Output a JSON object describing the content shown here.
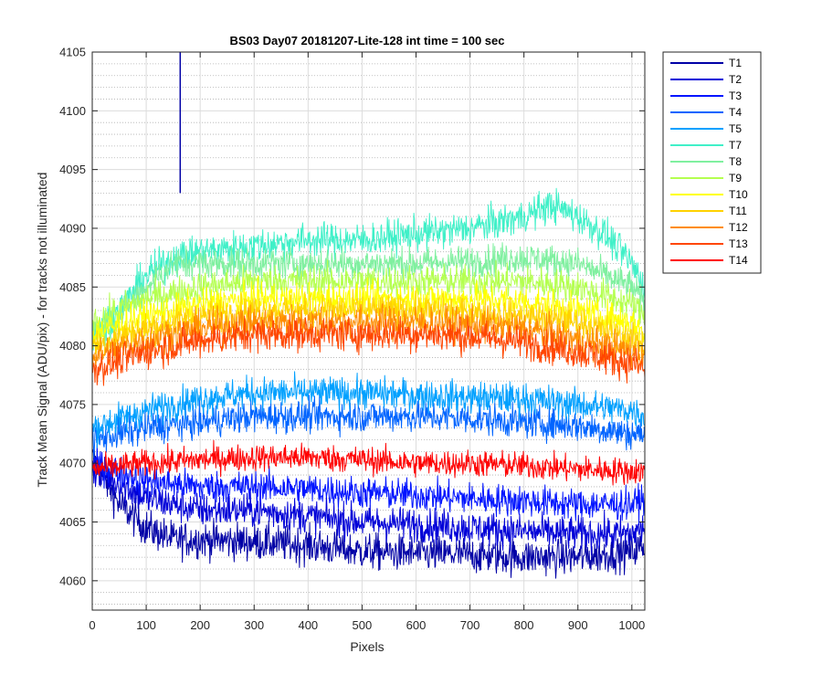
{
  "chart_data": {
    "type": "line",
    "title": "BS03 Day07 20181207-Lite-128 int time = 100 sec",
    "xlabel": "Pixels",
    "ylabel": "Track Mean Signal (ADU/pix) - for tracks not illuminated",
    "xlim": [
      0,
      1024
    ],
    "ylim": [
      4057.5,
      4105
    ],
    "xticks": [
      0,
      100,
      200,
      300,
      400,
      500,
      600,
      700,
      800,
      900,
      1000
    ],
    "yticks": [
      4060,
      4065,
      4070,
      4075,
      4080,
      4085,
      4090,
      4095,
      4100,
      4105
    ],
    "grid": true,
    "minor_grid": true,
    "legend_position": "outside-top-right",
    "spike": {
      "series": "T1",
      "x": 163,
      "y_top": 4105,
      "y_bottom": 4093
    },
    "series": [
      {
        "name": "T1",
        "color": "#0000a6",
        "points": [
          [
            0,
            4070.5
          ],
          [
            50,
            4066.5
          ],
          [
            100,
            4064.5
          ],
          [
            150,
            4063.5
          ],
          [
            200,
            4063.5
          ],
          [
            300,
            4063.3
          ],
          [
            400,
            4063.0
          ],
          [
            500,
            4062.5
          ],
          [
            600,
            4062.3
          ],
          [
            700,
            4062.2
          ],
          [
            800,
            4062.0
          ],
          [
            900,
            4062.0
          ],
          [
            1000,
            4062.5
          ],
          [
            1024,
            4063
          ]
        ],
        "noise": 1.5
      },
      {
        "name": "T2",
        "color": "#0000d8",
        "points": [
          [
            0,
            4069.5
          ],
          [
            100,
            4067
          ],
          [
            200,
            4066
          ],
          [
            300,
            4066
          ],
          [
            400,
            4065.5
          ],
          [
            500,
            4065
          ],
          [
            600,
            4064.8
          ],
          [
            700,
            4064.5
          ],
          [
            800,
            4064.2
          ],
          [
            900,
            4064
          ],
          [
            1000,
            4064
          ],
          [
            1024,
            4064.5
          ]
        ],
        "noise": 1.4
      },
      {
        "name": "T3",
        "color": "#0014ff",
        "points": [
          [
            0,
            4070
          ],
          [
            100,
            4068.5
          ],
          [
            200,
            4068
          ],
          [
            300,
            4068
          ],
          [
            400,
            4067.8
          ],
          [
            500,
            4067.5
          ],
          [
            600,
            4067.3
          ],
          [
            700,
            4067
          ],
          [
            800,
            4066.8
          ],
          [
            900,
            4066.5
          ],
          [
            1000,
            4066.5
          ],
          [
            1024,
            4067
          ]
        ],
        "noise": 1.3
      },
      {
        "name": "T4",
        "color": "#0064ff",
        "points": [
          [
            0,
            4072
          ],
          [
            100,
            4073
          ],
          [
            200,
            4073.5
          ],
          [
            300,
            4074
          ],
          [
            400,
            4074
          ],
          [
            500,
            4074
          ],
          [
            600,
            4074
          ],
          [
            700,
            4073.8
          ],
          [
            800,
            4073.5
          ],
          [
            900,
            4073.2
          ],
          [
            1000,
            4072.5
          ],
          [
            1024,
            4072.5
          ]
        ],
        "noise": 1.3
      },
      {
        "name": "T5",
        "color": "#00a0ff",
        "points": [
          [
            0,
            4073
          ],
          [
            100,
            4074.5
          ],
          [
            200,
            4075.5
          ],
          [
            300,
            4076
          ],
          [
            400,
            4076
          ],
          [
            500,
            4076
          ],
          [
            600,
            4075.8
          ],
          [
            700,
            4075.6
          ],
          [
            800,
            4075.5
          ],
          [
            900,
            4075
          ],
          [
            1000,
            4074.5
          ],
          [
            1024,
            4074
          ]
        ],
        "noise": 1.3
      },
      {
        "name": "T7",
        "color": "#40f0c8",
        "points": [
          [
            0,
            4081
          ],
          [
            50,
            4083
          ],
          [
            100,
            4086
          ],
          [
            150,
            4087.5
          ],
          [
            200,
            4088
          ],
          [
            300,
            4088.5
          ],
          [
            400,
            4089
          ],
          [
            500,
            4089
          ],
          [
            600,
            4089.5
          ],
          [
            700,
            4090
          ],
          [
            800,
            4091
          ],
          [
            850,
            4092
          ],
          [
            900,
            4091
          ],
          [
            950,
            4089.5
          ],
          [
            1000,
            4087
          ],
          [
            1024,
            4085
          ]
        ],
        "noise": 1.4
      },
      {
        "name": "T8",
        "color": "#80f0a0",
        "points": [
          [
            0,
            4081
          ],
          [
            50,
            4082.5
          ],
          [
            100,
            4085
          ],
          [
            150,
            4087
          ],
          [
            200,
            4087
          ],
          [
            300,
            4087
          ],
          [
            400,
            4087
          ],
          [
            500,
            4087
          ],
          [
            600,
            4087
          ],
          [
            700,
            4087.2
          ],
          [
            800,
            4087.5
          ],
          [
            900,
            4087
          ],
          [
            1000,
            4085
          ],
          [
            1024,
            4083.5
          ]
        ],
        "noise": 1.3
      },
      {
        "name": "T9",
        "color": "#b4ff50",
        "points": [
          [
            0,
            4082
          ],
          [
            100,
            4084
          ],
          [
            200,
            4085
          ],
          [
            300,
            4085.5
          ],
          [
            400,
            4085.5
          ],
          [
            500,
            4085.5
          ],
          [
            600,
            4085.5
          ],
          [
            700,
            4085.5
          ],
          [
            800,
            4085.5
          ],
          [
            900,
            4085
          ],
          [
            1000,
            4083.5
          ],
          [
            1024,
            4082.5
          ]
        ],
        "noise": 1.3
      },
      {
        "name": "T10",
        "color": "#ffff00",
        "points": [
          [
            0,
            4081
          ],
          [
            100,
            4082.5
          ],
          [
            200,
            4083.5
          ],
          [
            300,
            4084
          ],
          [
            400,
            4084
          ],
          [
            500,
            4084
          ],
          [
            600,
            4084
          ],
          [
            700,
            4084
          ],
          [
            800,
            4083.8
          ],
          [
            900,
            4083
          ],
          [
            1000,
            4082
          ],
          [
            1024,
            4081
          ]
        ],
        "noise": 1.3
      },
      {
        "name": "T11",
        "color": "#ffd200",
        "points": [
          [
            0,
            4080
          ],
          [
            100,
            4081.5
          ],
          [
            200,
            4082.5
          ],
          [
            300,
            4083
          ],
          [
            400,
            4083
          ],
          [
            500,
            4083
          ],
          [
            600,
            4083
          ],
          [
            700,
            4082.8
          ],
          [
            800,
            4082.5
          ],
          [
            900,
            4082
          ],
          [
            1000,
            4080.5
          ],
          [
            1024,
            4080
          ]
        ],
        "noise": 1.3
      },
      {
        "name": "T12",
        "color": "#ff8c00",
        "points": [
          [
            0,
            4079
          ],
          [
            100,
            4080.5
          ],
          [
            200,
            4081.5
          ],
          [
            300,
            4082
          ],
          [
            400,
            4082
          ],
          [
            500,
            4082
          ],
          [
            600,
            4082
          ],
          [
            700,
            4081.8
          ],
          [
            800,
            4081.5
          ],
          [
            900,
            4080.5
          ],
          [
            1000,
            4079.5
          ],
          [
            1024,
            4079
          ]
        ],
        "noise": 1.4
      },
      {
        "name": "T13",
        "color": "#ff4600",
        "points": [
          [
            0,
            4078
          ],
          [
            100,
            4079.5
          ],
          [
            200,
            4080.5
          ],
          [
            300,
            4081
          ],
          [
            400,
            4081
          ],
          [
            500,
            4081
          ],
          [
            600,
            4081
          ],
          [
            700,
            4080.8
          ],
          [
            800,
            4080.3
          ],
          [
            900,
            4079.5
          ],
          [
            1000,
            4078.5
          ],
          [
            1024,
            4078
          ]
        ],
        "noise": 1.4
      },
      {
        "name": "T14",
        "color": "#ff0000",
        "points": [
          [
            0,
            4069.5
          ],
          [
            100,
            4070
          ],
          [
            200,
            4070.3
          ],
          [
            300,
            4070.5
          ],
          [
            400,
            4070.5
          ],
          [
            500,
            4070.3
          ],
          [
            600,
            4070
          ],
          [
            700,
            4070
          ],
          [
            800,
            4069.8
          ],
          [
            900,
            4069.5
          ],
          [
            1000,
            4069.3
          ],
          [
            1024,
            4069.3
          ]
        ],
        "noise": 1.1
      }
    ]
  }
}
